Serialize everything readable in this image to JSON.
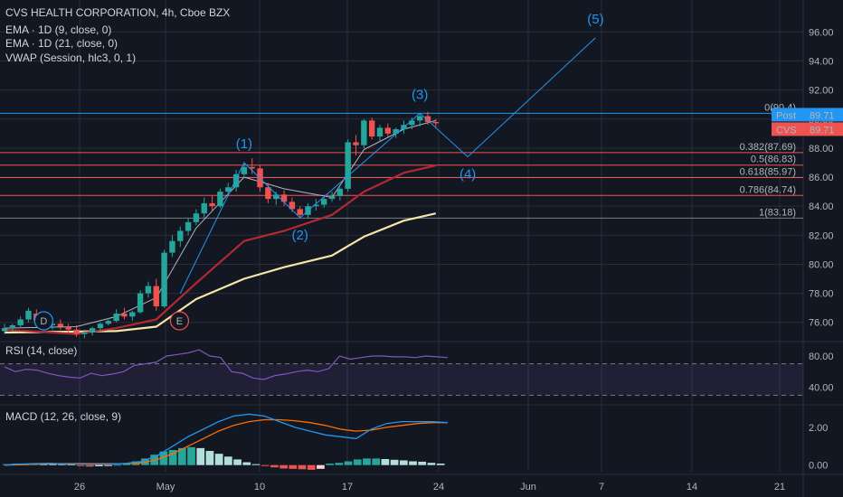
{
  "header": {
    "title": "CVS HEALTH CORPORATION, 4h, Cboe BZX",
    "indicators": [
      "EMA · 1D (9, close, 0)",
      "EMA · 1D (21, close, 0)",
      "VWAP (Session, hlc3, 0, 1)"
    ]
  },
  "colors": {
    "bg": "#131722",
    "up": "#26a69a",
    "down": "#ef5350",
    "grid": "#2a2e39",
    "wave": "#2196f3",
    "ema9": "#b2b5be",
    "ema21": "#b22833",
    "vwap": "#f5e6a7",
    "rsi": "#7e57c2",
    "macd": "#2196f3",
    "signal": "#ff6d00"
  },
  "chart_data": [
    {
      "type": "candlestick",
      "panel": "price",
      "ylim": [
        74.8,
        98.2
      ],
      "y_ticks": [
        "96.00",
        "94.00",
        "92.00",
        "90.00",
        "88.00",
        "86.00",
        "84.00",
        "82.00",
        "80.00",
        "78.00",
        "76.00"
      ],
      "x_ticks": [
        "26",
        "May",
        "10",
        "17",
        "24",
        "Jun",
        "7",
        "14",
        "21"
      ],
      "candles": [
        [
          75.4,
          75.9,
          75.2,
          75.6
        ],
        [
          75.6,
          75.9,
          75.4,
          75.8
        ],
        [
          75.8,
          76.4,
          75.6,
          76.2
        ],
        [
          76.2,
          77.0,
          76.0,
          76.8
        ],
        [
          76.6,
          76.9,
          76.0,
          76.1
        ],
        [
          76.1,
          76.3,
          75.6,
          75.8
        ],
        [
          75.8,
          76.0,
          75.5,
          75.9
        ],
        [
          75.9,
          76.2,
          75.5,
          75.7
        ],
        [
          75.7,
          75.9,
          75.3,
          75.5
        ],
        [
          75.5,
          75.8,
          75.0,
          75.2
        ],
        [
          75.2,
          75.5,
          74.9,
          75.3
        ],
        [
          75.3,
          75.7,
          75.1,
          75.6
        ],
        [
          75.6,
          76.0,
          75.4,
          75.9
        ],
        [
          75.9,
          76.3,
          75.8,
          76.1
        ],
        [
          76.1,
          76.9,
          76.0,
          76.6
        ],
        [
          76.6,
          77.0,
          76.2,
          76.4
        ],
        [
          76.4,
          76.8,
          76.1,
          76.7
        ],
        [
          76.7,
          78.2,
          76.6,
          78.0
        ],
        [
          78.0,
          78.8,
          77.7,
          78.5
        ],
        [
          78.5,
          79.0,
          76.8,
          77.1
        ],
        [
          77.1,
          81.0,
          77.0,
          80.8
        ],
        [
          80.8,
          82.0,
          80.5,
          81.6
        ],
        [
          81.6,
          82.6,
          81.2,
          82.3
        ],
        [
          82.3,
          83.2,
          82.0,
          82.9
        ],
        [
          82.9,
          83.8,
          82.7,
          83.5
        ],
        [
          83.5,
          84.6,
          83.2,
          84.2
        ],
        [
          84.2,
          84.7,
          83.7,
          84.0
        ],
        [
          84.0,
          85.2,
          83.9,
          85.0
        ],
        [
          85.0,
          85.6,
          84.7,
          85.3
        ],
        [
          85.3,
          86.5,
          85.0,
          86.2
        ],
        [
          86.2,
          87.0,
          85.9,
          86.7
        ],
        [
          86.7,
          87.3,
          86.2,
          86.6
        ],
        [
          86.6,
          86.8,
          85.0,
          85.3
        ],
        [
          85.3,
          85.6,
          84.2,
          84.5
        ],
        [
          84.5,
          85.0,
          84.1,
          84.8
        ],
        [
          84.8,
          85.1,
          84.0,
          84.3
        ],
        [
          84.3,
          84.6,
          83.6,
          83.8
        ],
        [
          83.8,
          84.0,
          83.2,
          83.4
        ],
        [
          83.4,
          84.2,
          83.2,
          84.0
        ],
        [
          84.0,
          84.5,
          83.7,
          84.1
        ],
        [
          84.1,
          84.6,
          83.9,
          84.5
        ],
        [
          84.5,
          85.0,
          84.3,
          84.7
        ],
        [
          84.7,
          85.3,
          84.4,
          85.2
        ],
        [
          85.2,
          88.6,
          85.0,
          88.4
        ],
        [
          88.4,
          88.9,
          87.5,
          88.2
        ],
        [
          88.2,
          90.0,
          88.0,
          89.9
        ],
        [
          89.9,
          90.1,
          88.6,
          88.8
        ],
        [
          88.8,
          89.6,
          88.4,
          89.4
        ],
        [
          89.4,
          89.7,
          88.8,
          89.0
        ],
        [
          89.0,
          89.4,
          88.7,
          89.3
        ],
        [
          89.3,
          89.9,
          89.0,
          89.6
        ],
        [
          89.6,
          90.1,
          89.3,
          89.9
        ],
        [
          89.9,
          90.4,
          89.5,
          90.2
        ],
        [
          90.2,
          90.5,
          89.6,
          89.8
        ],
        [
          89.8,
          90.0,
          89.4,
          89.71
        ]
      ],
      "ema9_1d": [
        [
          0,
          75.6
        ],
        [
          9,
          75.7
        ],
        [
          14,
          76.4
        ],
        [
          19,
          77.7
        ],
        [
          24,
          82.5
        ],
        [
          30,
          86.0
        ],
        [
          35,
          85.2
        ],
        [
          41,
          84.6
        ],
        [
          45,
          87.9
        ],
        [
          50,
          89.3
        ],
        [
          54,
          89.9
        ]
      ],
      "ema21_1d": [
        [
          0,
          75.5
        ],
        [
          9,
          75.2
        ],
        [
          14,
          75.6
        ],
        [
          19,
          76.2
        ],
        [
          24,
          78.7
        ],
        [
          30,
          81.6
        ],
        [
          35,
          82.3
        ],
        [
          41,
          83.4
        ],
        [
          45,
          85.0
        ],
        [
          50,
          86.3
        ],
        [
          54,
          86.8
        ]
      ],
      "vwap_session": [
        [
          0,
          75.3
        ],
        [
          14,
          75.4
        ],
        [
          19,
          75.7
        ],
        [
          24,
          77.6
        ],
        [
          30,
          79.0
        ],
        [
          35,
          79.8
        ],
        [
          41,
          80.6
        ],
        [
          45,
          81.9
        ],
        [
          50,
          83.0
        ],
        [
          54,
          83.5
        ]
      ],
      "elliott_waves": [
        {
          "label": "(1)",
          "x": 30,
          "y": 87.0
        },
        {
          "label": "(2)",
          "x": 37,
          "y": 83.2
        },
        {
          "label": "(3)",
          "x": 52,
          "y": 90.4
        },
        {
          "label": "(4)",
          "x": 58,
          "y": 87.4
        },
        {
          "label": "(5)",
          "x": 74,
          "y": 95.6
        }
      ],
      "fibonacci": [
        {
          "label": "0(90.4)",
          "value": 90.4
        },
        {
          "label": "0.382(87.69)",
          "value": 87.69
        },
        {
          "label": "0.5(86.83)",
          "value": 86.83
        },
        {
          "label": "0.618(85.97)",
          "value": 85.97
        },
        {
          "label": "0.786(84.74)",
          "value": 84.74
        },
        {
          "label": "1(83.18)",
          "value": 83.18
        }
      ],
      "price_tags": [
        {
          "text": "Post",
          "value_text": "89.71",
          "value": 89.71,
          "color": "#2196f3"
        },
        {
          "text": "CVS",
          "value_text": "89.71",
          "value": 89.71,
          "color": "#ef5350"
        }
      ],
      "events": [
        {
          "text": "D",
          "x": 4
        },
        {
          "text": "E",
          "x": 21
        }
      ]
    },
    {
      "type": "line",
      "panel": "rsi",
      "title": "RSI (14, close)",
      "ylim": [
        20,
        95
      ],
      "y_ticks": [
        "80.00",
        "40.00"
      ],
      "band": [
        70,
        30
      ],
      "series": [
        {
          "name": "RSI (14, close)",
          "values": [
            66,
            60,
            63,
            62,
            58,
            55,
            53,
            52,
            58,
            55,
            57,
            60,
            68,
            70,
            72,
            80,
            82,
            84,
            88,
            80,
            78,
            60,
            58,
            52,
            50,
            55,
            57,
            60,
            62,
            60,
            64,
            80,
            76,
            78,
            80,
            80,
            79,
            79,
            78,
            80,
            79,
            78
          ]
        }
      ]
    },
    {
      "type": "bar",
      "panel": "macd",
      "title": "MACD (12, 26, close, 9)",
      "ylim": [
        -0.35,
        3.0
      ],
      "y_ticks": [
        "2.00",
        "0.00"
      ],
      "histogram": [
        0.05,
        0.08,
        0.06,
        0.1,
        0.08,
        0.06,
        0.05,
        0.04,
        -0.05,
        -0.08,
        -0.06,
        -0.04,
        0.02,
        0.08,
        0.2,
        0.35,
        0.55,
        0.72,
        0.8,
        0.9,
        0.95,
        0.9,
        0.75,
        0.6,
        0.45,
        0.3,
        0.15,
        0.05,
        -0.05,
        -0.12,
        -0.18,
        -0.2,
        -0.22,
        -0.25,
        -0.2,
        0.08,
        0.12,
        0.2,
        0.3,
        0.35,
        0.35,
        0.32,
        0.28,
        0.25,
        0.2,
        0.18,
        0.12,
        0.08
      ],
      "macd": [
        0.0,
        0.05,
        0.08,
        0.1,
        0.05,
        0.05,
        0.04,
        0.05,
        0.1,
        0.2,
        0.5,
        1.0,
        1.5,
        1.9,
        2.3,
        2.6,
        2.7,
        2.6,
        2.3,
        2.0,
        1.8,
        1.6,
        1.5,
        1.4,
        1.9,
        2.2,
        2.3,
        2.3,
        2.3,
        2.25
      ],
      "signal": [
        0.0,
        0.02,
        0.05,
        0.07,
        0.08,
        0.08,
        0.07,
        0.07,
        0.08,
        0.12,
        0.3,
        0.6,
        1.0,
        1.4,
        1.8,
        2.1,
        2.3,
        2.4,
        2.4,
        2.35,
        2.25,
        2.1,
        1.9,
        1.8,
        1.85,
        2.0,
        2.1,
        2.2,
        2.25,
        2.25
      ]
    }
  ]
}
